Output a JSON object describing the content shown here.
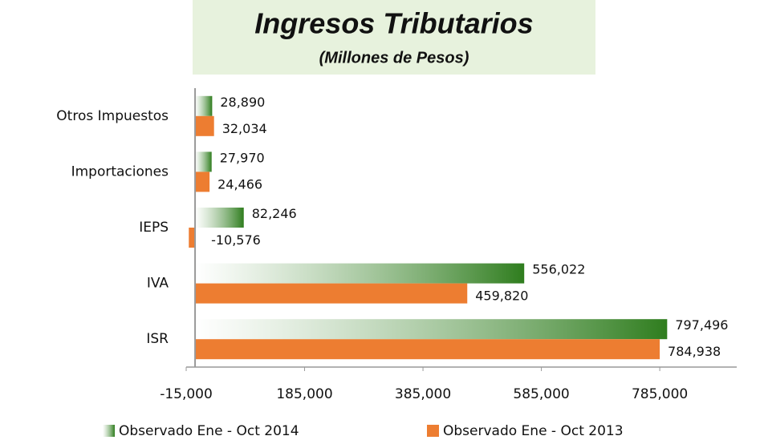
{
  "chart_data": {
    "type": "hbar",
    "title": "Ingresos Tributarios",
    "subtitle": "(Millones de Pesos)",
    "categories": [
      "Otros Impuestos",
      "Importaciones",
      "IEPS",
      "IVA",
      "ISR"
    ],
    "series": [
      {
        "name": "Observado Ene - Oct 2014",
        "color": "#2f7d1e",
        "values": [
          28890,
          27970,
          82246,
          556022,
          797496
        ],
        "value_labels": [
          "28,890",
          "27,970",
          "82,246",
          "556,022",
          "797,496"
        ]
      },
      {
        "name": "Observado Ene - Oct 2013",
        "color": "#ed7d31",
        "values": [
          32034,
          24466,
          -10576,
          459820,
          784938
        ],
        "value_labels": [
          "32,034",
          "24,466",
          "-10,576",
          "459,820",
          "784,938"
        ]
      }
    ],
    "xlim": [
      -15000,
      915000
    ],
    "xticks": [
      {
        "value": -15000,
        "label": "-15,000"
      },
      {
        "value": 185000,
        "label": "185,000"
      },
      {
        "value": 385000,
        "label": "385,000"
      },
      {
        "value": 585000,
        "label": "585,000"
      },
      {
        "value": 785000,
        "label": "785,000"
      }
    ],
    "legend": "bottom"
  }
}
